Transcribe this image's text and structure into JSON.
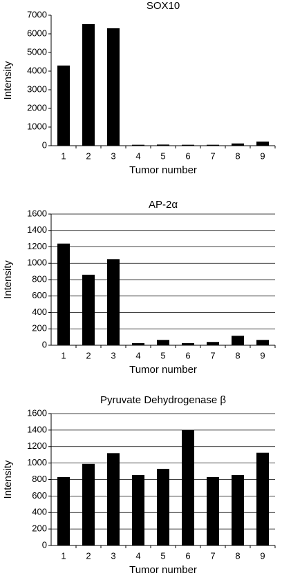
{
  "chart_data": [
    {
      "type": "bar",
      "title": "SOX10",
      "xlabel": "Tumor number",
      "ylabel": "Intensity",
      "categories": [
        "1",
        "2",
        "3",
        "4",
        "5",
        "6",
        "7",
        "8",
        "9"
      ],
      "values": [
        4300,
        6520,
        6300,
        50,
        60,
        50,
        50,
        120,
        220
      ],
      "color": "#000000",
      "ylim": [
        0,
        7000
      ],
      "yticks": [
        0,
        1000,
        2000,
        3000,
        4000,
        5000,
        6000,
        7000
      ],
      "grid": false
    },
    {
      "type": "bar",
      "title": "AP-2α",
      "xlabel": "Tumor number",
      "ylabel": "Intensity",
      "categories": [
        "1",
        "2",
        "3",
        "4",
        "5",
        "6",
        "7",
        "8",
        "9"
      ],
      "values": [
        1240,
        860,
        1050,
        25,
        65,
        25,
        40,
        115,
        65
      ],
      "color": "#000000",
      "ylim": [
        0,
        1600
      ],
      "yticks": [
        0,
        200,
        400,
        600,
        800,
        1000,
        1200,
        1400,
        1600
      ],
      "grid": true
    },
    {
      "type": "bar",
      "title": "Pyruvate Dehydrogenase β",
      "xlabel": "Tumor number",
      "ylabel": "Intensity",
      "categories": [
        "1",
        "2",
        "3",
        "4",
        "5",
        "6",
        "7",
        "8",
        "9"
      ],
      "values": [
        830,
        990,
        1120,
        855,
        930,
        1400,
        830,
        855,
        1125
      ],
      "color": "#000000",
      "ylim": [
        0,
        1600
      ],
      "yticks": [
        0,
        200,
        400,
        600,
        800,
        1000,
        1200,
        1400,
        1600
      ],
      "grid": true
    }
  ]
}
